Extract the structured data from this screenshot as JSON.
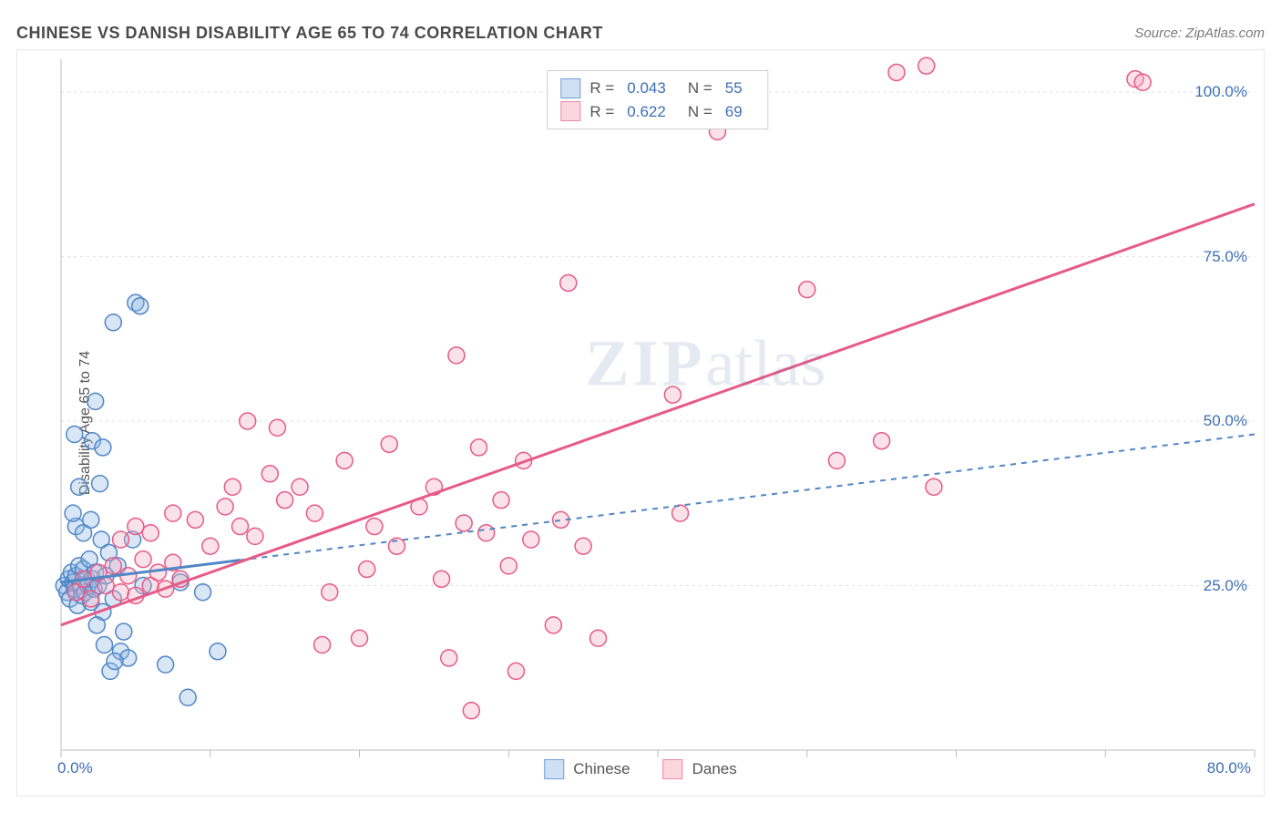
{
  "header": {
    "title": "CHINESE VS DANISH DISABILITY AGE 65 TO 74 CORRELATION CHART",
    "source_prefix": "Source: ",
    "source_name": "ZipAtlas.com"
  },
  "chart": {
    "type": "scatter",
    "ylabel": "Disability Age 65 to 74",
    "watermark": {
      "strong": "ZIP",
      "light": "atlas"
    },
    "xlim": [
      0,
      80
    ],
    "ylim": [
      0,
      105
    ],
    "x_axis_label_min": "0.0%",
    "x_axis_label_max": "80.0%",
    "x_ticks": [
      0,
      10,
      20,
      30,
      40,
      50,
      60,
      70,
      80
    ],
    "y_ticks": [
      {
        "v": 25,
        "label": "25.0%"
      },
      {
        "v": 50,
        "label": "50.0%"
      },
      {
        "v": 75,
        "label": "75.0%"
      },
      {
        "v": 100,
        "label": "100.0%"
      }
    ],
    "grid_color": "#e0e0e0",
    "grid_dash": "3,4",
    "axis_color": "#bcbcbc",
    "background_color": "#ffffff",
    "marker_radius": 9,
    "marker_fill_opacity": 0.35,
    "marker_stroke_width": 1.5,
    "trend_line_width_solid": 3,
    "trend_line_width_dash": 2,
    "trend_dash": "6,6",
    "series": [
      {
        "name": "Chinese",
        "color_fill": "#8fb8e6",
        "color_stroke": "#4f86c6",
        "R": "0.043",
        "N": "55",
        "trend": {
          "x1": 0,
          "y1": 25.5,
          "x2": 80,
          "y2": 48,
          "style": "dash-then-solid",
          "solid_until_x": 12
        },
        "points": [
          [
            0.2,
            25
          ],
          [
            0.4,
            24
          ],
          [
            0.5,
            26
          ],
          [
            0.6,
            23
          ],
          [
            0.7,
            27
          ],
          [
            0.8,
            25.5
          ],
          [
            0.9,
            24.5
          ],
          [
            1.0,
            26.5
          ],
          [
            1.1,
            22
          ],
          [
            1.2,
            28
          ],
          [
            1.3,
            25
          ],
          [
            1.4,
            23.5
          ],
          [
            1.5,
            27.5
          ],
          [
            1.6,
            24
          ],
          [
            1.7,
            26
          ],
          [
            1.8,
            25
          ],
          [
            1.9,
            29
          ],
          [
            2.0,
            22.5
          ],
          [
            2.1,
            26
          ],
          [
            2.2,
            24.5
          ],
          [
            2.3,
            27
          ],
          [
            2.5,
            25
          ],
          [
            2.7,
            32
          ],
          [
            2.8,
            21
          ],
          [
            3.0,
            26.5
          ],
          [
            3.2,
            30
          ],
          [
            3.5,
            23
          ],
          [
            3.8,
            28
          ],
          [
            4.0,
            15
          ],
          [
            4.2,
            18
          ],
          [
            4.5,
            14
          ],
          [
            3.3,
            12
          ],
          [
            3.6,
            13.5
          ],
          [
            2.9,
            16
          ],
          [
            2.4,
            19
          ],
          [
            1.0,
            34
          ],
          [
            1.5,
            33
          ],
          [
            2.0,
            35
          ],
          [
            0.8,
            36
          ],
          [
            1.2,
            40
          ],
          [
            2.6,
            40.5
          ],
          [
            2.1,
            47
          ],
          [
            2.8,
            46
          ],
          [
            0.9,
            48
          ],
          [
            2.3,
            53
          ],
          [
            3.5,
            65
          ],
          [
            5.0,
            68
          ],
          [
            5.3,
            67.5
          ],
          [
            4.8,
            32
          ],
          [
            5.5,
            25
          ],
          [
            8.0,
            25.5
          ],
          [
            9.5,
            24
          ],
          [
            10.5,
            15
          ],
          [
            8.5,
            8
          ],
          [
            7.0,
            13
          ]
        ]
      },
      {
        "name": "Danes",
        "color_fill": "#f4a9bd",
        "color_stroke": "#e75a87",
        "R": "0.622",
        "N": "69",
        "trend": {
          "x1": 0,
          "y1": 19,
          "x2": 80,
          "y2": 83,
          "style": "solid"
        },
        "points": [
          [
            1,
            24
          ],
          [
            1.5,
            26
          ],
          [
            2,
            23
          ],
          [
            2.5,
            27
          ],
          [
            3,
            25
          ],
          [
            3.5,
            28
          ],
          [
            4,
            24
          ],
          [
            4.5,
            26.5
          ],
          [
            5,
            23.5
          ],
          [
            5.5,
            29
          ],
          [
            6,
            25
          ],
          [
            6.5,
            27
          ],
          [
            7,
            24.5
          ],
          [
            7.5,
            28.5
          ],
          [
            8,
            26
          ],
          [
            4,
            32
          ],
          [
            5,
            34
          ],
          [
            6,
            33
          ],
          [
            7.5,
            36
          ],
          [
            9,
            35
          ],
          [
            10,
            31
          ],
          [
            11,
            37
          ],
          [
            12,
            34
          ],
          [
            13,
            32.5
          ],
          [
            14,
            42
          ],
          [
            15,
            38
          ],
          [
            16,
            40
          ],
          [
            14.5,
            49
          ],
          [
            17,
            36
          ],
          [
            18,
            24
          ],
          [
            19,
            44
          ],
          [
            20.5,
            27.5
          ],
          [
            21,
            34
          ],
          [
            22,
            46.5
          ],
          [
            22.5,
            31
          ],
          [
            24,
            37
          ],
          [
            25,
            40
          ],
          [
            25.5,
            26
          ],
          [
            26.5,
            60
          ],
          [
            27,
            34.5
          ],
          [
            28,
            46
          ],
          [
            28.5,
            33
          ],
          [
            29.5,
            38
          ],
          [
            30,
            28
          ],
          [
            31,
            44
          ],
          [
            31.5,
            32
          ],
          [
            33,
            19
          ],
          [
            33.5,
            35
          ],
          [
            34,
            71
          ],
          [
            35,
            31
          ],
          [
            36,
            17
          ],
          [
            30.5,
            12
          ],
          [
            27.5,
            6
          ],
          [
            26,
            14
          ],
          [
            20,
            17
          ],
          [
            41,
            54
          ],
          [
            41.5,
            36
          ],
          [
            44,
            94
          ],
          [
            50,
            70
          ],
          [
            52,
            44
          ],
          [
            55,
            47
          ],
          [
            58,
            104
          ],
          [
            56,
            103
          ],
          [
            58.5,
            40
          ],
          [
            72,
            102
          ],
          [
            72.5,
            101.5
          ],
          [
            17.5,
            16
          ],
          [
            11.5,
            40
          ],
          [
            12.5,
            50
          ]
        ]
      }
    ],
    "correlation_legend": {
      "rows": [
        {
          "swatch_fill": "#cfe0f5",
          "swatch_border": "#6fa0d8",
          "r_label": "R =",
          "r_value": "0.043",
          "n_label": "N =",
          "n_value": "55"
        },
        {
          "swatch_fill": "#fbd6df",
          "swatch_border": "#ef87a6",
          "r_label": "R =",
          "r_value": "0.622",
          "n_label": "N =",
          "n_value": "69"
        }
      ]
    },
    "series_legend": [
      {
        "swatch_fill": "#cfe0f5",
        "swatch_border": "#6fa0d8",
        "label": "Chinese"
      },
      {
        "swatch_fill": "#fbd6df",
        "swatch_border": "#ef87a6",
        "label": "Danes"
      }
    ]
  }
}
